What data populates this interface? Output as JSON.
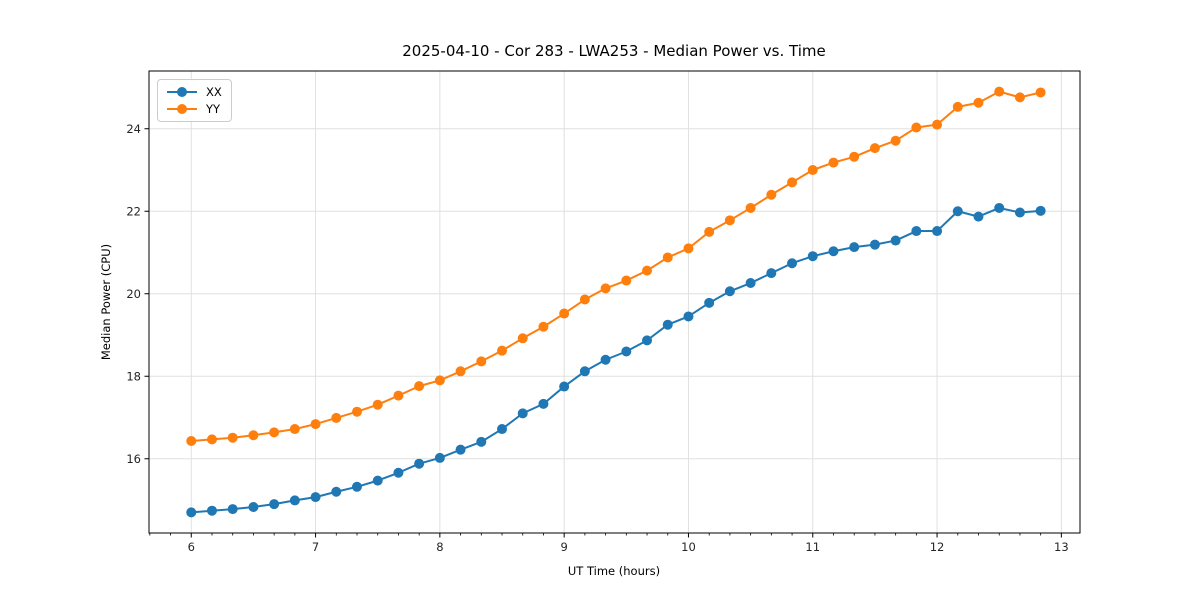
{
  "chart_data": {
    "type": "line",
    "title": "2025-04-10 - Cor 283 - LWA253 - Median Power vs. Time",
    "xlabel": "UT Time (hours)",
    "ylabel": "Median Power (CPU)",
    "xlim": [
      5.66,
      13.15
    ],
    "ylim": [
      14.2,
      25.4
    ],
    "x_ticks": [
      6,
      7,
      8,
      9,
      10,
      11,
      12,
      13
    ],
    "y_ticks": [
      16,
      18,
      20,
      22,
      24
    ],
    "x_minor_step": 0.16667,
    "grid": true,
    "grid_color": "#e0e0e0",
    "spine_color": "#000000",
    "legend_position": "upper-left",
    "x": [
      6.0,
      6.1667,
      6.3333,
      6.5,
      6.6667,
      6.8333,
      7.0,
      7.1667,
      7.3333,
      7.5,
      7.6667,
      7.8333,
      8.0,
      8.1667,
      8.3333,
      8.5,
      8.6667,
      8.8333,
      9.0,
      9.1667,
      9.3333,
      9.5,
      9.6667,
      9.8333,
      10.0,
      10.1667,
      10.3333,
      10.5,
      10.6667,
      10.8333,
      11.0,
      11.1667,
      11.3333,
      11.5,
      11.6667,
      11.8333,
      12.0,
      12.1667,
      12.3333,
      12.5,
      12.6667,
      12.8333
    ],
    "series": [
      {
        "name": "XX",
        "color": "#1f77b4",
        "values": [
          14.7,
          14.74,
          14.78,
          14.83,
          14.9,
          14.99,
          15.07,
          15.2,
          15.32,
          15.47,
          15.66,
          15.88,
          16.02,
          16.22,
          16.41,
          16.72,
          17.1,
          17.33,
          17.75,
          18.12,
          18.4,
          18.6,
          18.87,
          19.25,
          19.45,
          19.78,
          20.06,
          20.26,
          20.5,
          20.74,
          20.91,
          21.03,
          21.13,
          21.19,
          21.29,
          21.52,
          21.52,
          22.0,
          21.87,
          22.08,
          21.97,
          22.01
        ]
      },
      {
        "name": "YY",
        "color": "#ff7f0e",
        "values": [
          16.43,
          16.47,
          16.51,
          16.57,
          16.64,
          16.72,
          16.84,
          16.99,
          17.14,
          17.31,
          17.53,
          17.76,
          17.9,
          18.12,
          18.36,
          18.62,
          18.92,
          19.2,
          19.52,
          19.86,
          20.13,
          20.32,
          20.56,
          20.88,
          21.1,
          21.5,
          21.78,
          22.08,
          22.4,
          22.7,
          23.0,
          23.18,
          23.32,
          23.53,
          23.71,
          24.03,
          24.1,
          24.53,
          24.63,
          24.9,
          24.76,
          24.88
        ]
      }
    ]
  }
}
